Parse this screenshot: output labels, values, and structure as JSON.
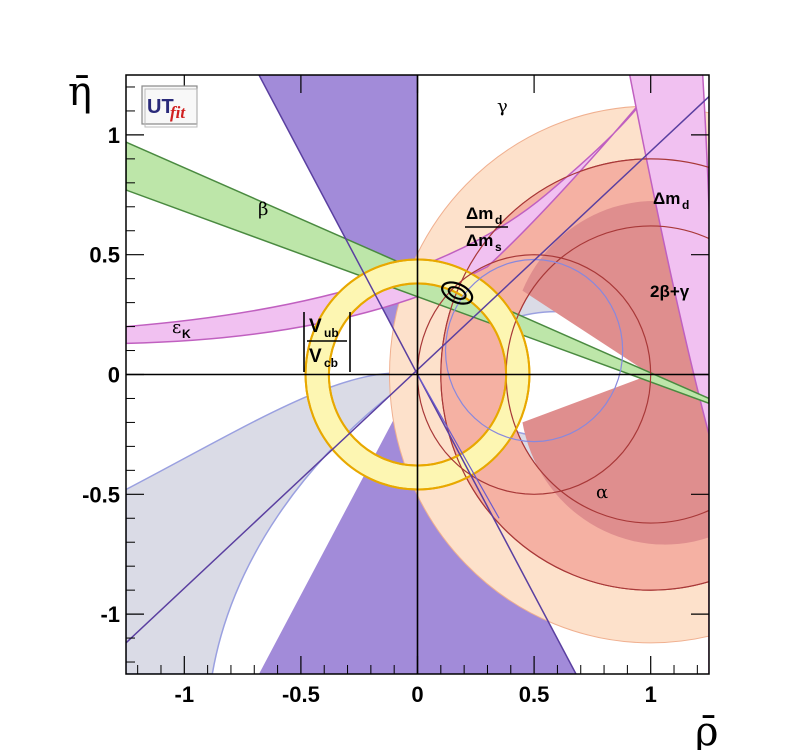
{
  "chart_data": {
    "type": "scatter",
    "title": "",
    "xlabel": "ρ̄",
    "ylabel": "η̄",
    "xlim": [
      -1.25,
      1.25
    ],
    "ylim": [
      -1.25,
      1.25
    ],
    "x_ticks": [
      "-1",
      "-0.5",
      "0",
      "0.5",
      "1"
    ],
    "y_ticks": [
      "-1",
      "-0.5",
      "0",
      "0.5",
      "1"
    ],
    "grid": false,
    "logo": {
      "ut": "UT",
      "fit": "fit"
    },
    "constraint_labels": {
      "gamma": "γ",
      "beta": "β",
      "alpha": "α",
      "epsilon_main": "ε",
      "epsilon_sub": "K",
      "dmd_ratio_main": "Δm",
      "dmd_ratio_sub": "d",
      "dms_main": "Δm",
      "dms_sub": "s",
      "dmd_main": "Δm",
      "dmd_sub": "d",
      "two_beta_gamma": "2β+γ",
      "vub_main": "V",
      "vub_sub": "ub",
      "vcb_main": "V",
      "vcb_sub": "cb"
    },
    "best_fit": {
      "rho": 0.17,
      "eta": 0.34
    },
    "apex_reference": {
      "rho": 1,
      "eta": 0
    },
    "colors": {
      "gamma": "#a28bd9",
      "beta": "#bde6a9",
      "alpha": "#dadbe6",
      "dmd": "#f5b1a3",
      "dms_ring": "#fde1cb",
      "epsilon": "#f1c1f1",
      "vub": "#fdf6b2",
      "two_beta_gamma": "#df8e8e"
    }
  }
}
